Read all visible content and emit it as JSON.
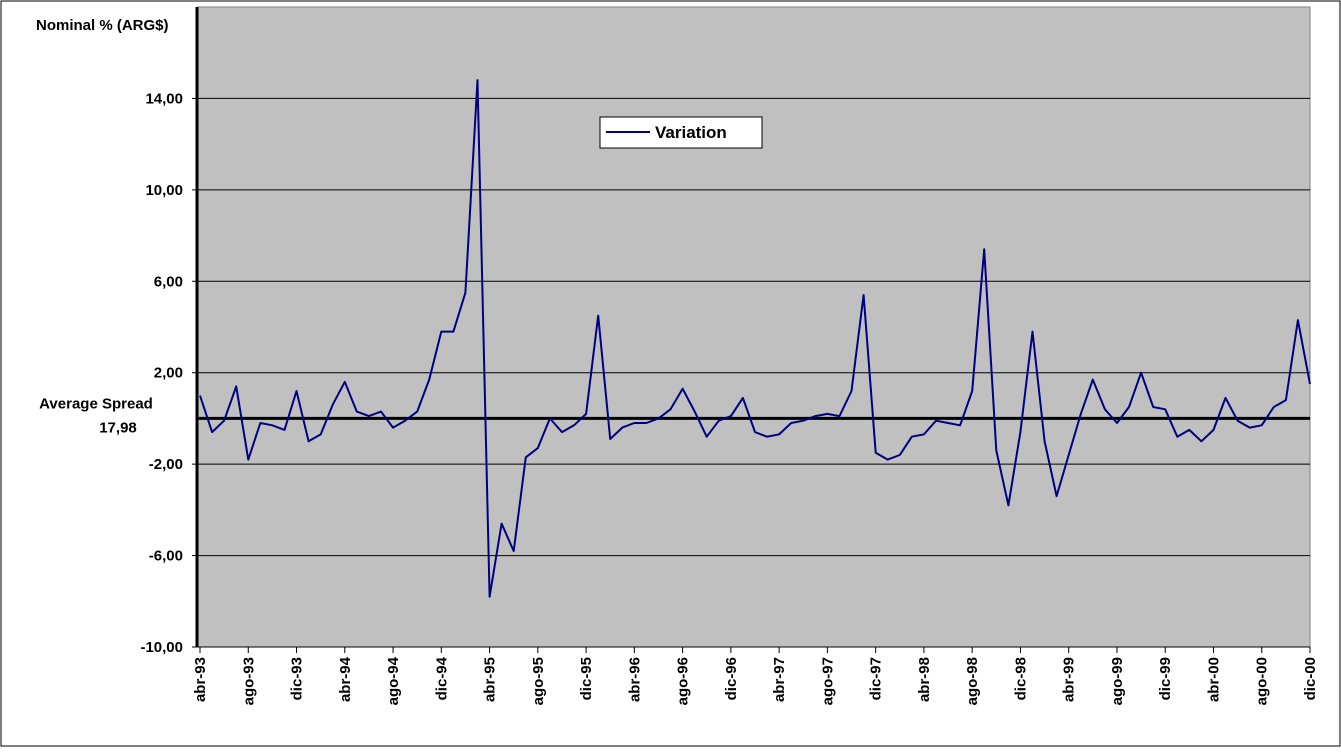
{
  "chart_data": {
    "type": "line",
    "y_axis_title": "Nominal % (ARG$)",
    "categories": [
      "abr-93",
      null,
      null,
      null,
      "ago-93",
      null,
      null,
      null,
      "dic-93",
      null,
      null,
      null,
      "abr-94",
      null,
      null,
      null,
      "ago-94",
      null,
      null,
      null,
      "dic-94",
      null,
      null,
      null,
      "abr-95",
      null,
      null,
      null,
      "ago-95",
      null,
      null,
      null,
      "dic-95",
      null,
      null,
      null,
      "abr-96",
      null,
      null,
      null,
      "ago-96",
      null,
      null,
      null,
      "dic-96",
      null,
      null,
      null,
      "abr-97",
      null,
      null,
      null,
      "ago-97",
      null,
      null,
      null,
      "dic-97",
      null,
      null,
      null,
      "abr-98",
      null,
      null,
      null,
      "ago-98",
      null,
      null,
      null,
      "dic-98",
      null,
      null,
      null,
      "abr-99",
      null,
      null,
      null,
      "ago-99",
      null,
      null,
      null,
      "dic-99",
      null,
      null,
      null,
      "abr-00",
      null,
      null,
      null,
      "ago-00",
      null,
      null,
      null,
      "dic-00"
    ],
    "series": [
      {
        "name": "Variation",
        "color": "#000080",
        "values": [
          1.0,
          -0.6,
          -0.1,
          1.4,
          -1.8,
          -0.2,
          -0.3,
          -0.5,
          1.2,
          -1.0,
          -0.7,
          0.6,
          1.6,
          0.3,
          0.1,
          0.3,
          -0.4,
          -0.1,
          0.3,
          1.7,
          3.8,
          3.8,
          5.5,
          14.8,
          -7.8,
          -4.6,
          -5.8,
          -1.7,
          -1.3,
          0.0,
          -0.6,
          -0.3,
          0.2,
          4.5,
          -0.9,
          -0.4,
          -0.2,
          -0.2,
          0.0,
          0.4,
          1.3,
          0.3,
          -0.8,
          -0.1,
          0.1,
          0.9,
          -0.6,
          -0.8,
          -0.7,
          -0.2,
          -0.1,
          0.1,
          0.2,
          0.1,
          1.2,
          5.4,
          -1.5,
          -1.8,
          -1.6,
          -0.8,
          -0.7,
          -0.1,
          -0.2,
          -0.3,
          1.2,
          7.4,
          -1.4,
          -3.8,
          -0.6,
          3.8,
          -1.0,
          -3.4,
          -1.6,
          0.2,
          1.7,
          0.4,
          -0.2,
          0.5,
          2.0,
          0.5,
          0.4,
          -0.8,
          -0.5,
          -1.0,
          -0.5,
          0.9,
          -0.1,
          -0.4,
          -0.3,
          0.5,
          0.8,
          4.3,
          1.5
        ]
      }
    ],
    "ylim": [
      -10,
      18
    ],
    "yticks": [
      {
        "value": -10,
        "label": "-10,00"
      },
      {
        "value": -6,
        "label": "-6,00"
      },
      {
        "value": -2,
        "label": "-2,00"
      },
      {
        "value": 2,
        "label": "2,00"
      },
      {
        "value": 6,
        "label": "6,00"
      },
      {
        "value": 10,
        "label": "10,00"
      },
      {
        "value": 14,
        "label": "14,00"
      }
    ],
    "grid": true,
    "plot_background": "#c0c0c0",
    "reference_line": {
      "value": 0,
      "label_lines": [
        "Average Spread",
        "17,98"
      ]
    }
  }
}
